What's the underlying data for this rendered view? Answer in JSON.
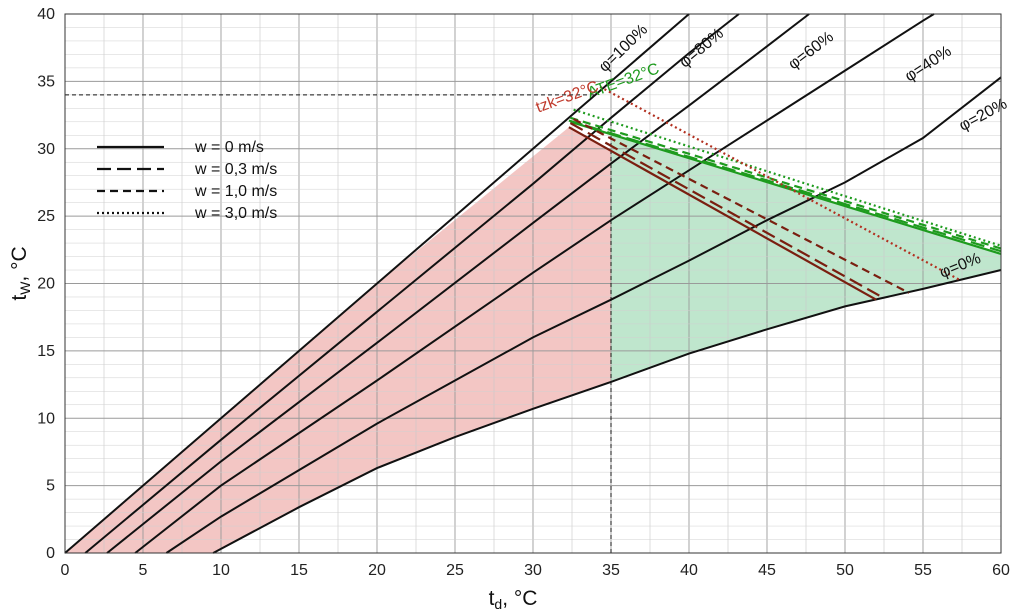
{
  "chart_data": {
    "type": "line",
    "xlabel": "td, °C",
    "xlabel_main": "t",
    "xlabel_sub": "d",
    "xlabel_unit": ", °C",
    "ylabel_main": "t",
    "ylabel_sub": "W",
    "ylabel_unit": ", °C",
    "xlim": [
      0,
      60
    ],
    "ylim": [
      0,
      40
    ],
    "x_ticks": [
      "0",
      "5",
      "10",
      "15",
      "20",
      "25",
      "30",
      "35",
      "40",
      "45",
      "50",
      "55",
      "60"
    ],
    "y_ticks": [
      "0",
      "5",
      "10",
      "15",
      "20",
      "25",
      "30",
      "35",
      "40"
    ],
    "grid": true,
    "legend_placement": "left",
    "legend": [
      {
        "label": "w = 0 m/s",
        "dash": "solid"
      },
      {
        "label": "w = 0,3 m/s",
        "dash": "long-dash"
      },
      {
        "label": "w = 1,0 m/s",
        "dash": "dash"
      },
      {
        "label": "w = 3,0 m/s",
        "dash": "dot"
      }
    ],
    "humidity_curves": [
      {
        "label": "φ=100%",
        "points": [
          [
            0,
            0
          ],
          [
            10,
            10
          ],
          [
            20,
            20
          ],
          [
            32.4,
            32.4
          ],
          [
            40,
            40
          ]
        ]
      },
      {
        "label": "φ=80%",
        "points": [
          [
            1.3,
            0
          ],
          [
            10,
            8.4
          ],
          [
            20,
            17.9
          ],
          [
            30,
            27.4
          ],
          [
            35,
            32.3
          ],
          [
            40,
            37.1
          ],
          [
            43.2,
            40
          ]
        ]
      },
      {
        "label": "φ=60%",
        "points": [
          [
            2.7,
            0
          ],
          [
            10,
            6.8
          ],
          [
            20,
            15.6
          ],
          [
            30,
            24.5
          ],
          [
            35,
            28.9
          ],
          [
            40,
            33.2
          ],
          [
            45,
            37.6
          ],
          [
            47.7,
            40
          ]
        ]
      },
      {
        "label": "φ=40%",
        "points": [
          [
            4.5,
            0
          ],
          [
            10,
            5.0
          ],
          [
            20,
            12.8
          ],
          [
            30,
            20.8
          ],
          [
            35,
            24.7
          ],
          [
            40,
            28.4
          ],
          [
            45,
            32.1
          ],
          [
            50,
            35.8
          ],
          [
            55,
            39.5
          ],
          [
            55.7,
            40
          ]
        ]
      },
      {
        "label": "φ=20%",
        "points": [
          [
            6.5,
            0
          ],
          [
            10,
            2.7
          ],
          [
            20,
            9.6
          ],
          [
            30,
            16.0
          ],
          [
            35,
            18.8
          ],
          [
            40,
            21.7
          ],
          [
            45,
            24.7
          ],
          [
            50,
            27.5
          ],
          [
            55,
            30.8
          ],
          [
            60,
            35.3
          ]
        ]
      },
      {
        "label": "φ=0%",
        "points": [
          [
            9.5,
            0
          ],
          [
            15,
            3.4
          ],
          [
            20,
            6.3
          ],
          [
            25,
            8.6
          ],
          [
            30,
            10.7
          ],
          [
            35,
            12.7
          ],
          [
            40,
            14.8
          ],
          [
            45,
            16.6
          ],
          [
            50,
            18.3
          ],
          [
            55,
            19.6
          ],
          [
            60,
            21.0
          ]
        ]
      }
    ],
    "ate_lines": [
      {
        "label": "ATE=32°C",
        "color": "#1e9b1e",
        "dash": "solid",
        "points": [
          [
            32.4,
            32.0
          ],
          [
            60,
            22.2
          ]
        ]
      },
      {
        "label": "",
        "color": "#1e9b1e",
        "dash": "long-dash",
        "points": [
          [
            32.3,
            32.1
          ],
          [
            60,
            22.4
          ]
        ]
      },
      {
        "label": "",
        "color": "#1e9b1e",
        "dash": "dash",
        "points": [
          [
            32.4,
            32.3
          ],
          [
            60,
            22.6
          ]
        ]
      },
      {
        "label": "",
        "color": "#1e9b1e",
        "dash": "dot",
        "points": [
          [
            32.6,
            32.9
          ],
          [
            60,
            22.8
          ]
        ]
      }
    ],
    "tzk_lines": [
      {
        "label": "tzk=32°C",
        "color": "#7a1f10",
        "dash": "solid",
        "points": [
          [
            32.3,
            31.6
          ],
          [
            52,
            18.8
          ]
        ]
      },
      {
        "label": "",
        "color": "#7a1f10",
        "dash": "long-dash",
        "points": [
          [
            32.4,
            31.9
          ],
          [
            52.2,
            19.1
          ]
        ]
      },
      {
        "label": "",
        "color": "#7a1f10",
        "dash": "dash",
        "points": [
          [
            32.6,
            32.2
          ],
          [
            54.1,
            19.3
          ]
        ]
      },
      {
        "label": "",
        "color": "#b23020",
        "dash": "dot",
        "points": [
          [
            34.3,
            34.6
          ],
          [
            57.3,
            20.3
          ]
        ]
      }
    ],
    "reference_lines": [
      {
        "orientation": "horizontal",
        "value": 34,
        "from": 0,
        "to": 34
      },
      {
        "orientation": "vertical",
        "value": 35,
        "from": 0,
        "to": 32.3
      }
    ],
    "regions": [
      {
        "name": "red-zone",
        "color": "#f3c6c4",
        "x_range": [
          0,
          35
        ]
      },
      {
        "name": "green-zone",
        "color": "#bfe6cd",
        "x_range": [
          35,
          60
        ]
      }
    ]
  }
}
